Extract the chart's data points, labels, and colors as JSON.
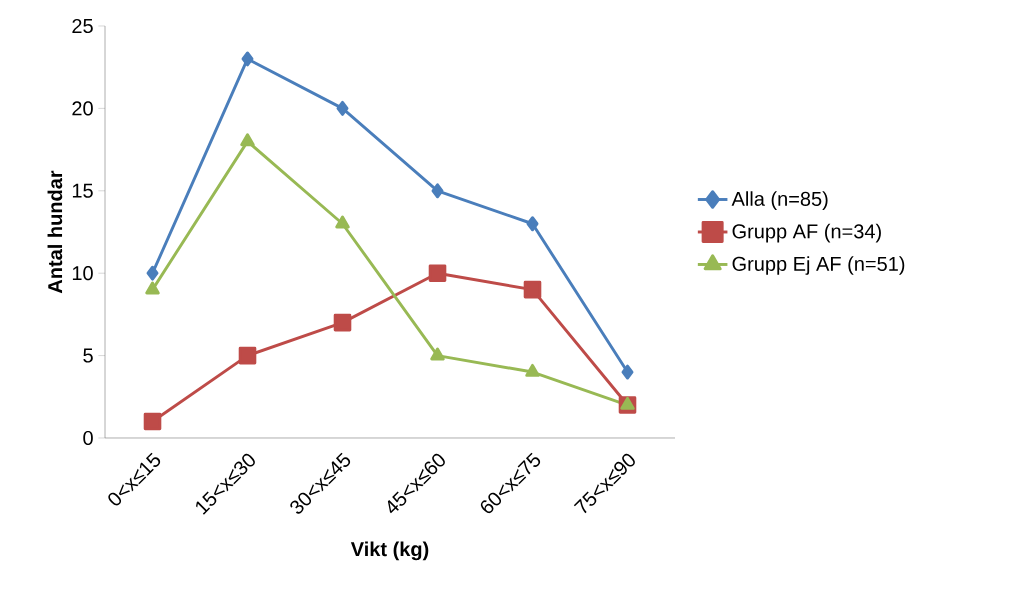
{
  "chart_data": {
    "type": "line",
    "xlabel": "Vikt (kg)",
    "ylabel": "Antal hundar",
    "categories": [
      "0<x≤15",
      "15<x≤30",
      "30<x≤45",
      "45<x≤60",
      "60<x≤75",
      "75<x≤90"
    ],
    "series": [
      {
        "name": "Alla (n=85)",
        "color": "#4a7ebb",
        "marker": "diamond",
        "values": [
          10,
          23,
          20,
          15,
          13,
          4
        ]
      },
      {
        "name": "Grupp AF (n=34)",
        "color": "#be4b48",
        "marker": "square",
        "values": [
          1,
          5,
          7,
          10,
          9,
          2
        ]
      },
      {
        "name": "Grupp Ej AF (n=51)",
        "color": "#98b954",
        "marker": "triangle",
        "values": [
          9,
          18,
          13,
          5,
          4,
          2
        ]
      }
    ],
    "ylim": [
      0,
      25
    ],
    "yticks": [
      0,
      5,
      10,
      15,
      20,
      25
    ],
    "grid": false,
    "legend": "right",
    "line_style": "solid"
  }
}
